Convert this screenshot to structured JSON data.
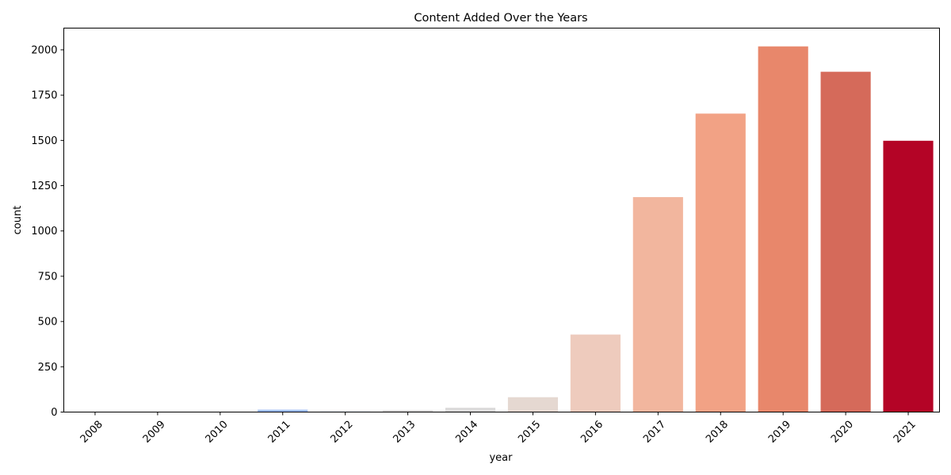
{
  "chart_data": {
    "type": "bar",
    "title": "Content Added Over the Years",
    "xlabel": "year",
    "ylabel": "count",
    "categories": [
      "2008",
      "2009",
      "2010",
      "2011",
      "2012",
      "2013",
      "2014",
      "2015",
      "2016",
      "2017",
      "2018",
      "2019",
      "2020",
      "2021"
    ],
    "values": [
      2,
      2,
      1,
      13,
      3,
      11,
      24,
      82,
      428,
      1187,
      1648,
      2019,
      1879,
      1498
    ],
    "colors": [
      "#3b4cc0",
      "#5977e3",
      "#7b9ff9",
      "#9ebeff",
      "#c0d4f5",
      "#dddcdc",
      "#dddcdc",
      "#e5d8d1",
      "#eecbbd",
      "#f2b69e",
      "#f2a285",
      "#e8876b",
      "#d56a5a",
      "#b40426"
    ],
    "ylim": [
      0,
      2120
    ],
    "yticks": [
      0,
      250,
      500,
      750,
      1000,
      1250,
      1500,
      1750,
      2000
    ],
    "grid": false,
    "legend": "none",
    "xtick_rotation_deg": 45
  }
}
